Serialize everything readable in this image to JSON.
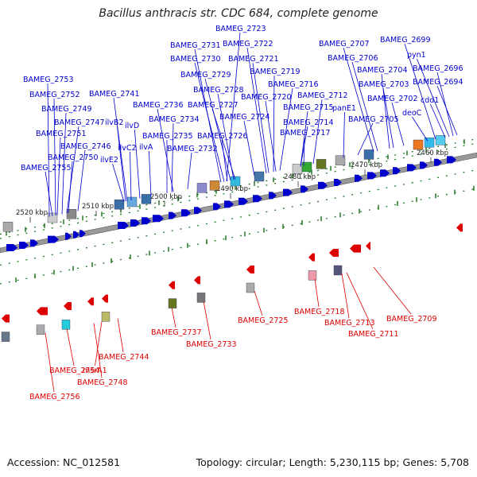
{
  "title": "Bacillus anthracis str. CDC 684, complete genome",
  "footer": {
    "accession": "Accession: NC_012581",
    "info": "Topology: circular; Length: 5,230,115 bp; Genes: 5,708"
  },
  "colors": {
    "forward": "#0000cc",
    "reverse": "#dd0000",
    "backbone": "#888888",
    "tick": "#227722"
  },
  "scale_labels": [
    {
      "text": "2520 kbp"
    },
    {
      "text": "2510 kbp"
    },
    {
      "text": "2500 kbp"
    },
    {
      "text": "2490 kbp"
    },
    {
      "text": "2480 kbp"
    },
    {
      "text": "2470 kbp"
    },
    {
      "text": "2460 kbp"
    }
  ],
  "forward_labels": [
    "BAMEG_2723",
    "BAMEG_2699",
    "BAMEG_2731",
    "BAMEG_2722",
    "BAMEG_2707",
    "pyn1",
    "BAMEG_2730",
    "BAMEG_2721",
    "BAMEG_2706",
    "BAMEG_2696",
    "BAMEG_2753",
    "BAMEG_2729",
    "BAMEG_2719",
    "BAMEG_2704",
    "BAMEG_2694",
    "BAMEG_2716",
    "BAMEG_2703",
    "BAMEG_2752",
    "BAMEG_2741",
    "BAMEG_2728",
    "BAMEG_2720",
    "BAMEG_2712",
    "BAMEG_2702",
    "cdd1",
    "BAMEG_2736",
    "BAMEG_2727",
    "BAMEG_2715",
    "panE1",
    "deoC",
    "BAMEG_2749",
    "ilvD",
    "BAMEG_2724",
    "BAMEG_2705",
    "BAMEG_2747",
    "BAMEG_2734",
    "BAMEG_2714",
    "ilvB2",
    "BAMEG_2751",
    "BAMEG_2735",
    "BAMEG_2726",
    "BAMEG_2717",
    "ilvC2",
    "ilvA",
    "BAMEG_2746",
    "BAMEG_2732",
    "BAMEG_2750",
    "ilvE2",
    "BAMEG_2755"
  ],
  "reverse_labels": [
    "BAMEG_2718",
    "BAMEG_2725",
    "BAMEG_2709",
    "BAMEG_2713",
    "BAMEG_2737",
    "BAMEG_2711",
    "BAMEG_2733",
    "BAMEG_2744",
    "BAMEG_2754",
    "msrA1",
    "BAMEG_2748",
    "BAMEG_2756"
  ]
}
